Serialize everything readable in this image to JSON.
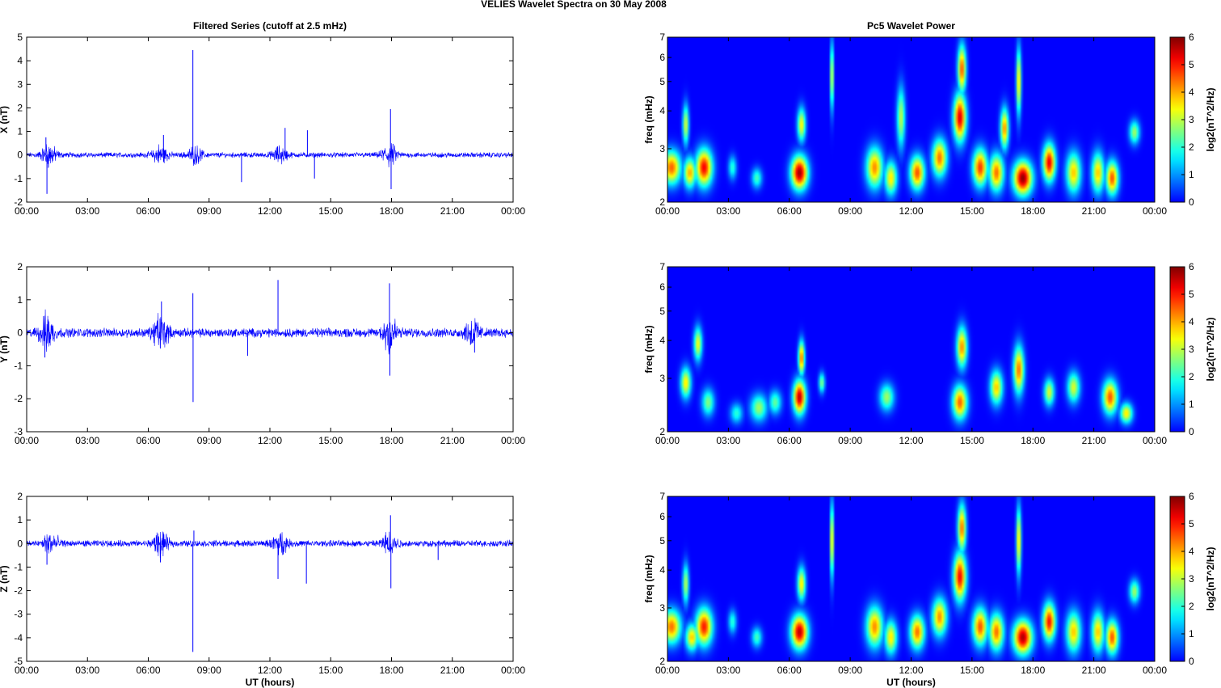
{
  "figure": {
    "suptitle": "VELIES Wavelet Spectra on 30 May      2008"
  },
  "chart_data": [
    {
      "type": "line",
      "title": "Filtered Series (cutoff at 2.5 mHz)",
      "ylabel": "X (nT)",
      "xlabel": "",
      "xticks": [
        "00:00",
        "03:00",
        "06:00",
        "09:00",
        "12:00",
        "15:00",
        "18:00",
        "21:00",
        "00:00"
      ],
      "xlim_hours": [
        0,
        24
      ],
      "ylim": [
        -2,
        5
      ],
      "yticks": [
        -2,
        -1,
        0,
        1,
        2,
        3,
        4,
        5
      ],
      "color": "#0000ff",
      "noise_level": 0.08,
      "bursts": [
        {
          "t": 1.1,
          "a": 0.35
        },
        {
          "t": 6.6,
          "a": 0.3
        },
        {
          "t": 8.3,
          "a": 0.25
        },
        {
          "t": 12.5,
          "a": 0.25
        },
        {
          "t": 17.9,
          "a": 0.35
        }
      ],
      "spikes": [
        {
          "t": 1.0,
          "v": -1.65
        },
        {
          "t": 0.95,
          "v": 0.75
        },
        {
          "t": 6.75,
          "v": 0.85
        },
        {
          "t": 8.2,
          "v": 4.45
        },
        {
          "t": 12.75,
          "v": 1.15
        },
        {
          "t": 13.85,
          "v": 1.05
        },
        {
          "t": 10.6,
          "v": -1.15
        },
        {
          "t": 17.95,
          "v": 1.95
        },
        {
          "t": 17.98,
          "v": -1.45
        },
        {
          "t": 14.2,
          "v": -1.0
        }
      ]
    },
    {
      "type": "line",
      "title": "",
      "ylabel": "Y (nT)",
      "xlabel": "",
      "xticks": [
        "00:00",
        "03:00",
        "06:00",
        "09:00",
        "12:00",
        "15:00",
        "18:00",
        "21:00",
        "00:00"
      ],
      "xlim_hours": [
        0,
        24
      ],
      "ylim": [
        -3,
        2
      ],
      "yticks": [
        -3,
        -2,
        -1,
        0,
        1,
        2
      ],
      "color": "#0000ff",
      "noise_level": 0.1,
      "bursts": [
        {
          "t": 1.0,
          "a": 0.4
        },
        {
          "t": 6.6,
          "a": 0.4
        },
        {
          "t": 17.9,
          "a": 0.45
        },
        {
          "t": 22.0,
          "a": 0.3
        }
      ],
      "spikes": [
        {
          "t": 0.9,
          "v": -0.75
        },
        {
          "t": 6.65,
          "v": 0.95
        },
        {
          "t": 8.2,
          "v": 1.2
        },
        {
          "t": 8.21,
          "v": -2.1
        },
        {
          "t": 12.4,
          "v": 1.6
        },
        {
          "t": 17.9,
          "v": 1.5
        },
        {
          "t": 17.92,
          "v": -1.3
        },
        {
          "t": 10.9,
          "v": -0.7
        },
        {
          "t": 22.1,
          "v": -0.6
        }
      ]
    },
    {
      "type": "line",
      "title": "",
      "ylabel": "Z (nT)",
      "xlabel": "UT (hours)",
      "xticks": [
        "00:00",
        "03:00",
        "06:00",
        "09:00",
        "12:00",
        "15:00",
        "18:00",
        "21:00",
        "00:00"
      ],
      "xlim_hours": [
        0,
        24
      ],
      "ylim": [
        -5,
        2
      ],
      "yticks": [
        -5,
        -4,
        -3,
        -2,
        -1,
        0,
        1,
        2
      ],
      "color": "#0000ff",
      "noise_level": 0.1,
      "bursts": [
        {
          "t": 1.2,
          "a": 0.35
        },
        {
          "t": 6.6,
          "a": 0.35
        },
        {
          "t": 12.5,
          "a": 0.3
        },
        {
          "t": 17.9,
          "a": 0.35
        }
      ],
      "spikes": [
        {
          "t": 1.0,
          "v": -0.9
        },
        {
          "t": 6.6,
          "v": -0.8
        },
        {
          "t": 8.2,
          "v": -4.6
        },
        {
          "t": 8.25,
          "v": 0.55
        },
        {
          "t": 12.4,
          "v": -1.5
        },
        {
          "t": 13.8,
          "v": -1.7
        },
        {
          "t": 17.95,
          "v": 1.2
        },
        {
          "t": 17.97,
          "v": -1.9
        },
        {
          "t": 20.3,
          "v": -0.7
        }
      ]
    },
    {
      "type": "heatmap",
      "title": "Pc5 Wavelet Power",
      "ylabel": "freq (mHz)",
      "xlabel": "",
      "xticks": [
        "00:00",
        "03:00",
        "06:00",
        "09:00",
        "12:00",
        "15:00",
        "18:00",
        "21:00",
        "00:00"
      ],
      "xlim_hours": [
        0,
        24
      ],
      "ylim_mHz": [
        2,
        7
      ],
      "yscale": "log",
      "yticks": [
        2,
        3,
        4,
        5,
        6,
        7
      ],
      "colormap": "jet",
      "colorbar": {
        "label": "log2(nT^2/Hz)",
        "range": [
          0,
          6
        ],
        "ticks": [
          0,
          1,
          2,
          3,
          4,
          5,
          6
        ]
      },
      "blobs": [
        {
          "t": 0.2,
          "f": 2.6,
          "w": 0.45,
          "h": 0.5,
          "p": 4.5
        },
        {
          "t": 1.1,
          "f": 2.5,
          "w": 0.3,
          "h": 0.45,
          "p": 4
        },
        {
          "t": 1.8,
          "f": 2.6,
          "w": 0.4,
          "h": 0.55,
          "p": 5.2
        },
        {
          "t": 0.9,
          "f": 3.6,
          "w": 0.15,
          "h": 0.6,
          "p": 3.2
        },
        {
          "t": 3.2,
          "f": 2.6,
          "w": 0.2,
          "h": 0.35,
          "p": 2
        },
        {
          "t": 4.4,
          "f": 2.4,
          "w": 0.25,
          "h": 0.3,
          "p": 2.2
        },
        {
          "t": 6.5,
          "f": 2.5,
          "w": 0.4,
          "h": 0.5,
          "p": 5.8
        },
        {
          "t": 6.6,
          "f": 3.6,
          "w": 0.2,
          "h": 0.5,
          "p": 3.5
        },
        {
          "t": 8.1,
          "f": 5.2,
          "w": 0.08,
          "h": 1.0,
          "p": 3.8
        },
        {
          "t": 10.2,
          "f": 2.6,
          "w": 0.4,
          "h": 0.6,
          "p": 4.2
        },
        {
          "t": 11.0,
          "f": 2.4,
          "w": 0.3,
          "h": 0.5,
          "p": 3.6
        },
        {
          "t": 11.5,
          "f": 3.8,
          "w": 0.2,
          "h": 0.9,
          "p": 3
        },
        {
          "t": 12.3,
          "f": 2.5,
          "w": 0.35,
          "h": 0.5,
          "p": 4.6
        },
        {
          "t": 13.4,
          "f": 2.8,
          "w": 0.35,
          "h": 0.55,
          "p": 4.4
        },
        {
          "t": 14.4,
          "f": 3.8,
          "w": 0.3,
          "h": 0.7,
          "p": 5.4
        },
        {
          "t": 14.5,
          "f": 5.5,
          "w": 0.2,
          "h": 0.7,
          "p": 4.6
        },
        {
          "t": 15.4,
          "f": 2.6,
          "w": 0.35,
          "h": 0.55,
          "p": 4.8
        },
        {
          "t": 16.2,
          "f": 2.5,
          "w": 0.35,
          "h": 0.55,
          "p": 4.4
        },
        {
          "t": 16.6,
          "f": 3.5,
          "w": 0.2,
          "h": 0.6,
          "p": 4.2
        },
        {
          "t": 17.5,
          "f": 2.4,
          "w": 0.45,
          "h": 0.5,
          "p": 5.9
        },
        {
          "t": 17.3,
          "f": 5.0,
          "w": 0.12,
          "h": 1.0,
          "p": 3.8
        },
        {
          "t": 18.8,
          "f": 2.7,
          "w": 0.3,
          "h": 0.55,
          "p": 5.3
        },
        {
          "t": 20.0,
          "f": 2.5,
          "w": 0.35,
          "h": 0.6,
          "p": 3.8
        },
        {
          "t": 21.2,
          "f": 2.5,
          "w": 0.3,
          "h": 0.6,
          "p": 3.8
        },
        {
          "t": 21.9,
          "f": 2.4,
          "w": 0.3,
          "h": 0.5,
          "p": 4.6
        },
        {
          "t": 23.0,
          "f": 3.4,
          "w": 0.25,
          "h": 0.35,
          "p": 2.8
        }
      ]
    },
    {
      "type": "heatmap",
      "title": "",
      "ylabel": "freq (mHz)",
      "xlabel": "",
      "xticks": [
        "00:00",
        "03:00",
        "06:00",
        "09:00",
        "12:00",
        "15:00",
        "18:00",
        "21:00",
        "00:00"
      ],
      "xlim_hours": [
        0,
        24
      ],
      "ylim_mHz": [
        2,
        7
      ],
      "yscale": "log",
      "yticks": [
        2,
        3,
        4,
        5,
        6,
        7
      ],
      "colormap": "jet",
      "colorbar": {
        "label": "log2(nT^2/Hz)",
        "range": [
          0,
          6
        ],
        "ticks": [
          0,
          1,
          2,
          3,
          4,
          5,
          6
        ]
      },
      "blobs": [
        {
          "t": 0.9,
          "f": 2.9,
          "w": 0.25,
          "h": 0.45,
          "p": 3.6
        },
        {
          "t": 1.5,
          "f": 3.9,
          "w": 0.2,
          "h": 0.5,
          "p": 3.4
        },
        {
          "t": 2.0,
          "f": 2.5,
          "w": 0.3,
          "h": 0.4,
          "p": 2.6
        },
        {
          "t": 3.4,
          "f": 2.3,
          "w": 0.3,
          "h": 0.3,
          "p": 2
        },
        {
          "t": 4.5,
          "f": 2.4,
          "w": 0.4,
          "h": 0.4,
          "p": 2.8
        },
        {
          "t": 5.3,
          "f": 2.5,
          "w": 0.3,
          "h": 0.35,
          "p": 2.4
        },
        {
          "t": 6.5,
          "f": 2.6,
          "w": 0.3,
          "h": 0.5,
          "p": 5.6
        },
        {
          "t": 6.6,
          "f": 3.5,
          "w": 0.15,
          "h": 0.5,
          "p": 4.5
        },
        {
          "t": 7.6,
          "f": 2.9,
          "w": 0.15,
          "h": 0.3,
          "p": 2.6
        },
        {
          "t": 10.8,
          "f": 2.6,
          "w": 0.35,
          "h": 0.4,
          "p": 2.8
        },
        {
          "t": 14.4,
          "f": 2.5,
          "w": 0.35,
          "h": 0.5,
          "p": 4.5
        },
        {
          "t": 14.5,
          "f": 3.8,
          "w": 0.25,
          "h": 0.6,
          "p": 4.2
        },
        {
          "t": 16.2,
          "f": 2.8,
          "w": 0.3,
          "h": 0.5,
          "p": 3.8
        },
        {
          "t": 17.3,
          "f": 3.2,
          "w": 0.25,
          "h": 0.7,
          "p": 4.4
        },
        {
          "t": 18.8,
          "f": 2.7,
          "w": 0.25,
          "h": 0.4,
          "p": 3.2
        },
        {
          "t": 20.0,
          "f": 2.8,
          "w": 0.3,
          "h": 0.45,
          "p": 3.2
        },
        {
          "t": 21.8,
          "f": 2.6,
          "w": 0.35,
          "h": 0.5,
          "p": 4.6
        },
        {
          "t": 22.6,
          "f": 2.3,
          "w": 0.3,
          "h": 0.3,
          "p": 3.6
        }
      ]
    },
    {
      "type": "heatmap",
      "title": "",
      "ylabel": "freq (mHz)",
      "xlabel": "UT (hours)",
      "xticks": [
        "00:00",
        "03:00",
        "06:00",
        "09:00",
        "12:00",
        "15:00",
        "18:00",
        "21:00",
        "00:00"
      ],
      "xlim_hours": [
        0,
        24
      ],
      "ylim_mHz": [
        2,
        7
      ],
      "yscale": "log",
      "yticks": [
        2,
        3,
        4,
        5,
        6,
        7
      ],
      "colormap": "jet",
      "colorbar": {
        "label": "log2(nT^2/Hz)",
        "range": [
          0,
          6
        ],
        "ticks": [
          0,
          1,
          2,
          3,
          4,
          5,
          6
        ]
      },
      "blobs": [
        {
          "t": 0.2,
          "f": 2.6,
          "w": 0.45,
          "h": 0.5,
          "p": 4.4
        },
        {
          "t": 1.2,
          "f": 2.4,
          "w": 0.3,
          "h": 0.4,
          "p": 3.8
        },
        {
          "t": 1.8,
          "f": 2.6,
          "w": 0.4,
          "h": 0.55,
          "p": 5
        },
        {
          "t": 0.9,
          "f": 3.6,
          "w": 0.15,
          "h": 0.6,
          "p": 3
        },
        {
          "t": 3.2,
          "f": 2.7,
          "w": 0.2,
          "h": 0.35,
          "p": 2
        },
        {
          "t": 4.4,
          "f": 2.4,
          "w": 0.25,
          "h": 0.3,
          "p": 2.2
        },
        {
          "t": 6.5,
          "f": 2.5,
          "w": 0.4,
          "h": 0.5,
          "p": 5.6
        },
        {
          "t": 6.6,
          "f": 3.6,
          "w": 0.2,
          "h": 0.5,
          "p": 3.6
        },
        {
          "t": 8.1,
          "f": 5.0,
          "w": 0.08,
          "h": 1.1,
          "p": 4.4
        },
        {
          "t": 10.2,
          "f": 2.6,
          "w": 0.4,
          "h": 0.6,
          "p": 4.2
        },
        {
          "t": 11.0,
          "f": 2.4,
          "w": 0.3,
          "h": 0.5,
          "p": 3.6
        },
        {
          "t": 12.3,
          "f": 2.5,
          "w": 0.35,
          "h": 0.5,
          "p": 4.4
        },
        {
          "t": 13.4,
          "f": 2.8,
          "w": 0.35,
          "h": 0.55,
          "p": 4.2
        },
        {
          "t": 14.4,
          "f": 3.8,
          "w": 0.3,
          "h": 0.7,
          "p": 5.2
        },
        {
          "t": 14.5,
          "f": 5.5,
          "w": 0.2,
          "h": 0.7,
          "p": 4.4
        },
        {
          "t": 15.4,
          "f": 2.6,
          "w": 0.35,
          "h": 0.55,
          "p": 4.6
        },
        {
          "t": 16.2,
          "f": 2.5,
          "w": 0.35,
          "h": 0.55,
          "p": 4.4
        },
        {
          "t": 17.5,
          "f": 2.4,
          "w": 0.45,
          "h": 0.5,
          "p": 5.7
        },
        {
          "t": 17.3,
          "f": 5.0,
          "w": 0.12,
          "h": 1.0,
          "p": 3.8
        },
        {
          "t": 18.8,
          "f": 2.7,
          "w": 0.3,
          "h": 0.55,
          "p": 5.1
        },
        {
          "t": 20.0,
          "f": 2.5,
          "w": 0.35,
          "h": 0.6,
          "p": 3.8
        },
        {
          "t": 21.2,
          "f": 2.5,
          "w": 0.3,
          "h": 0.6,
          "p": 3.8
        },
        {
          "t": 21.9,
          "f": 2.4,
          "w": 0.3,
          "h": 0.5,
          "p": 4.6
        },
        {
          "t": 23.0,
          "f": 3.4,
          "w": 0.25,
          "h": 0.35,
          "p": 2.8
        }
      ]
    }
  ]
}
